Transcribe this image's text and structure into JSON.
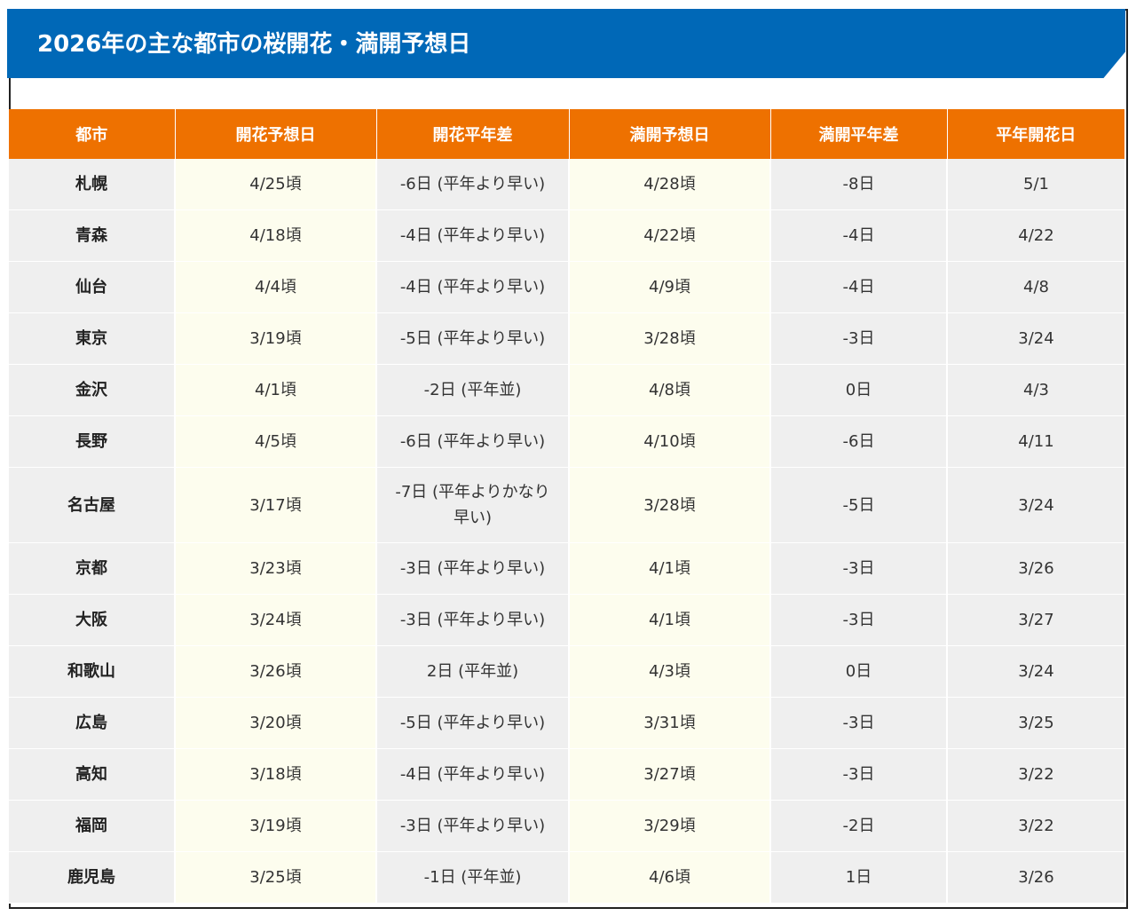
{
  "page": {
    "title": "2026年の主な都市の桜開花・満開予想日"
  },
  "colors": {
    "title_bg": "#0068b7",
    "header_bg": "#ee7100",
    "cell_bg": "#efefef",
    "highlight_bg": "#fdfdee"
  },
  "table": {
    "headers": [
      "都市",
      "開花予想日",
      "開花平年差",
      "満開予想日",
      "満開平年差",
      "平年開花日"
    ],
    "rows": [
      [
        "札幌",
        "4/25頃",
        "-6日 (平年より早い)",
        "4/28頃",
        "-8日",
        "5/1"
      ],
      [
        "青森",
        "4/18頃",
        "-4日 (平年より早い)",
        "4/22頃",
        "-4日",
        "4/22"
      ],
      [
        "仙台",
        "4/4頃",
        "-4日 (平年より早い)",
        "4/9頃",
        "-4日",
        "4/8"
      ],
      [
        "東京",
        "3/19頃",
        "-5日 (平年より早い)",
        "3/28頃",
        "-3日",
        "3/24"
      ],
      [
        "金沢",
        "4/1頃",
        "-2日 (平年並)",
        "4/8頃",
        "0日",
        "4/3"
      ],
      [
        "長野",
        "4/5頃",
        "-6日 (平年より早い)",
        "4/10頃",
        "-6日",
        "4/11"
      ],
      [
        "名古屋",
        "3/17頃",
        "-7日 (平年よりかなり早い)",
        "3/28頃",
        "-5日",
        "3/24"
      ],
      [
        "京都",
        "3/23頃",
        "-3日 (平年より早い)",
        "4/1頃",
        "-3日",
        "3/26"
      ],
      [
        "大阪",
        "3/24頃",
        "-3日 (平年より早い)",
        "4/1頃",
        "-3日",
        "3/27"
      ],
      [
        "和歌山",
        "3/26頃",
        "2日 (平年並)",
        "4/3頃",
        "0日",
        "3/24"
      ],
      [
        "広島",
        "3/20頃",
        "-5日 (平年より早い)",
        "3/31頃",
        "-3日",
        "3/25"
      ],
      [
        "高知",
        "3/18頃",
        "-4日 (平年より早い)",
        "3/27頃",
        "-3日",
        "3/22"
      ],
      [
        "福岡",
        "3/19頃",
        "-3日 (平年より早い)",
        "3/29頃",
        "-2日",
        "3/22"
      ],
      [
        "鹿児島",
        "3/25頃",
        "-1日 (平年並)",
        "4/6頃",
        "1日",
        "3/26"
      ]
    ]
  }
}
